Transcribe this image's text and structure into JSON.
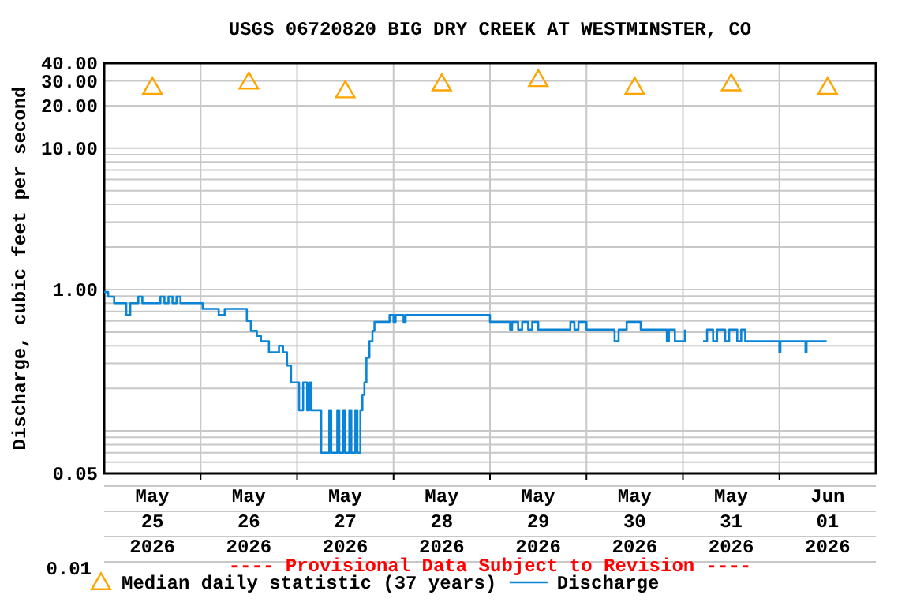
{
  "chart_data": {
    "type": "step",
    "title": "USGS 06720820 BIG DRY CREEK AT WESTMINSTER, CO",
    "ylabel": "Discharge, cubic feet per second",
    "annotations": [
      "---- Provisional Data Subject to Revision ----",
      "0.01"
    ],
    "log": "y",
    "grid": true,
    "legend": "bottom",
    "xlim": [
      "2026-05-25",
      "2026-06-02"
    ],
    "xticks": [
      {
        "value": "2026-05-25T12:00",
        "label": "May\n25\n2026"
      },
      {
        "value": "2026-05-26T12:00",
        "label": "May\n26\n2026"
      },
      {
        "value": "2026-05-27T12:00",
        "label": "May\n27\n2026"
      },
      {
        "value": "2026-05-28T12:00",
        "label": "May\n28\n2026"
      },
      {
        "value": "2026-05-29T12:00",
        "label": "May\n29\n2026"
      },
      {
        "value": "2026-05-30T12:00",
        "label": "May\n30\n2026"
      },
      {
        "value": "2026-05-31T12:00",
        "label": "May\n31\n2026"
      },
      {
        "value": "2026-06-01T12:00",
        "label": "Jun\n01\n2026"
      },
      {
        "value": "2026-05-26",
        "label": null
      },
      {
        "value": "2026-05-27",
        "label": null
      },
      {
        "value": "2026-05-28",
        "label": null
      },
      {
        "value": "2026-05-29",
        "label": null
      },
      {
        "value": "2026-05-30",
        "label": null
      },
      {
        "value": "2026-05-31",
        "label": null
      },
      {
        "value": "2026-06-01",
        "label": null
      }
    ],
    "ylim": [
      0.05,
      40
    ],
    "yticks": [
      0.05,
      {
        "value": 0.06,
        "label": null
      },
      {
        "value": 0.07,
        "label": null
      },
      {
        "value": 0.08,
        "label": null
      },
      {
        "value": 0.09,
        "label": null
      },
      {
        "value": 0.1,
        "label": null
      },
      {
        "value": 0.2,
        "label": null
      },
      {
        "value": 0.3,
        "label": null
      },
      {
        "value": 0.4,
        "label": null
      },
      {
        "value": 0.5,
        "label": null
      },
      {
        "value": 0.6,
        "label": null
      },
      {
        "value": 0.7,
        "label": null
      },
      {
        "value": 0.8,
        "label": null
      },
      {
        "value": 0.9,
        "label": null
      },
      {
        "value": 1,
        "label": "1.00"
      },
      {
        "value": 2,
        "label": null
      },
      {
        "value": 3,
        "label": null
      },
      {
        "value": 4,
        "label": null
      },
      {
        "value": 5,
        "label": null
      },
      {
        "value": 6,
        "label": null
      },
      {
        "value": 7,
        "label": null
      },
      {
        "value": 8,
        "label": null
      },
      {
        "value": 9,
        "label": null
      },
      {
        "value": 10,
        "label": "10.00"
      },
      {
        "value": 20,
        "label": "20.00"
      },
      {
        "value": 30,
        "label": "30.00"
      },
      {
        "value": 40,
        "label": "40.00"
      }
    ],
    "series": [
      {
        "name": "Median daily statistic (37 years)",
        "type": "scatter",
        "marker": "triangle",
        "color": "#ffa500",
        "x": [
          "2026-05-25T12:00",
          "2026-05-26T12:00",
          "2026-05-27T12:00",
          "2026-05-28T12:00",
          "2026-05-29T12:00",
          "2026-05-30T12:00",
          "2026-05-31T12:00",
          "2026-06-01T12:00"
        ],
        "values": [
          26.5,
          28.8,
          25,
          28,
          30,
          26.5,
          28,
          26.5
        ]
      },
      {
        "name": "Discharge",
        "color": "#0a84d6",
        "x": [
          "2026-05-25T00:00",
          "2026-05-25T01:00",
          "2026-05-25T02:30",
          "2026-05-25T05:30",
          "2026-05-25T06:30",
          "2026-05-25T08:30",
          "2026-05-25T09:30",
          "2026-05-25T14:00",
          "2026-05-25T15:00",
          "2026-05-25T16:00",
          "2026-05-25T17:00",
          "2026-05-25T18:00",
          "2026-05-25T19:00",
          "2026-05-26T00:30",
          "2026-05-26T04:30",
          "2026-05-26T06:00",
          "2026-05-26T11:30",
          "2026-05-26T12:30",
          "2026-05-26T14:00",
          "2026-05-26T15:00",
          "2026-05-26T17:00",
          "2026-05-26T19:30",
          "2026-05-26T20:30",
          "2026-05-26T21:30",
          "2026-05-26T22:30",
          "2026-05-27T00:30",
          "2026-05-27T01:30",
          "2026-05-27T02:30",
          "2026-05-27T03:00",
          "2026-05-27T03:30",
          "2026-05-27T06:00",
          "2026-05-27T08:00",
          "2026-05-27T08:30",
          "2026-05-27T10:00",
          "2026-05-27T10:30",
          "2026-05-27T11:30",
          "2026-05-27T12:00",
          "2026-05-27T13:00",
          "2026-05-27T13:30",
          "2026-05-27T14:30",
          "2026-05-27T15:00",
          "2026-05-27T15:45",
          "2026-05-27T16:15",
          "2026-05-27T16:45",
          "2026-05-27T17:15",
          "2026-05-27T18:00",
          "2026-05-27T18:45",
          "2026-05-27T19:15",
          "2026-05-27T23:00",
          "2026-05-28T00:00",
          "2026-05-28T00:30",
          "2026-05-28T02:30",
          "2026-05-28T03:00",
          "2026-05-29T00:00",
          "2026-05-29T05:00",
          "2026-05-29T05:30",
          "2026-05-29T07:00",
          "2026-05-29T08:00",
          "2026-05-29T09:30",
          "2026-05-29T10:30",
          "2026-05-29T12:00",
          "2026-05-29T20:00",
          "2026-05-29T21:00",
          "2026-05-29T22:00",
          "2026-05-30T00:00",
          "2026-05-30T07:00",
          "2026-05-30T08:00",
          "2026-05-30T10:00",
          "2026-05-30T13:30",
          "2026-05-30T20:00",
          "2026-05-30T20:30",
          "2026-05-30T22:00",
          "2026-05-31T00:30",
          "2026-05-31T02:00",
          "2026-05-31T05:00",
          "2026-05-31T06:00",
          "2026-05-31T07:30",
          "2026-05-31T08:30",
          "2026-05-31T10:30",
          "2026-05-31T11:30",
          "2026-05-31T13:30",
          "2026-05-31T14:30",
          "2026-05-31T15:30",
          "2026-06-01T00:00",
          "2026-06-01T00:15",
          "2026-06-01T06:30",
          "2026-06-01T06:45",
          "2026-06-01T11:45"
        ],
        "values": [
          0.96,
          0.89,
          0.8,
          0.66,
          0.8,
          0.89,
          0.8,
          0.89,
          0.8,
          0.89,
          0.8,
          0.89,
          0.8,
          0.73,
          0.66,
          0.73,
          0.6,
          0.51,
          0.47,
          0.43,
          0.36,
          0.4,
          0.36,
          0.29,
          0.22,
          0.14,
          0.22,
          0.14,
          0.22,
          0.14,
          0.07,
          0.14,
          0.07,
          0.14,
          0.07,
          0.14,
          0.07,
          0.14,
          0.07,
          0.14,
          0.07,
          0.14,
          0.18,
          0.22,
          0.33,
          0.43,
          0.51,
          0.59,
          0.66,
          0.59,
          0.66,
          0.59,
          0.66,
          0.59,
          0.52,
          0.59,
          0.52,
          0.59,
          0.52,
          0.59,
          0.52,
          0.59,
          0.52,
          0.59,
          0.52,
          0.43,
          0.52,
          0.59,
          0.52,
          0.43,
          0.52,
          0.43,
          0.52,
          null,
          0.43,
          0.52,
          0.43,
          0.52,
          0.43,
          0.52,
          0.43,
          0.52,
          0.43,
          0.36,
          0.43,
          0.36,
          0.43,
          0.43
        ]
      }
    ]
  }
}
